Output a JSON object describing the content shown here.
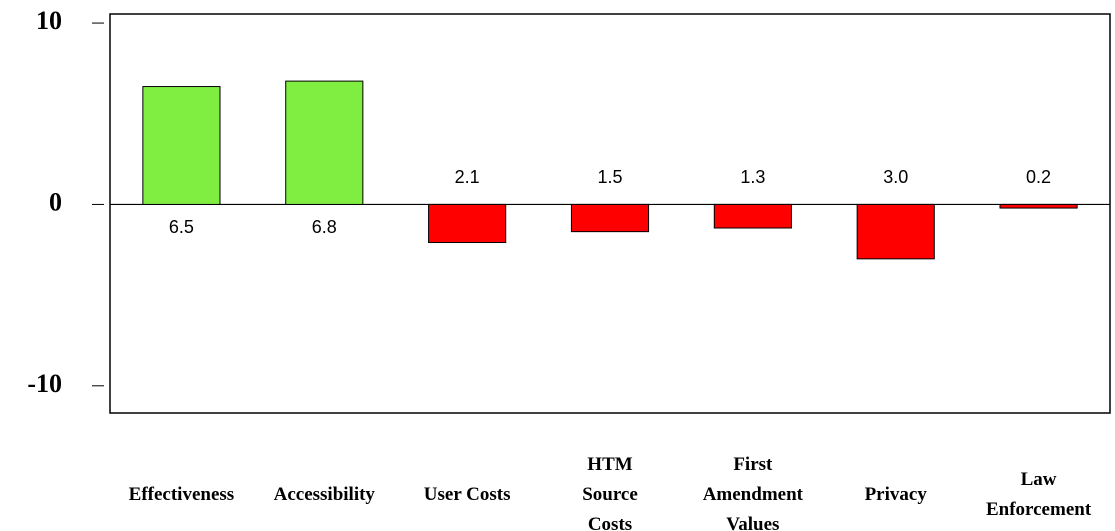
{
  "chart_data": {
    "type": "bar",
    "categories": [
      [
        "Effectiveness"
      ],
      [
        "Accessibility"
      ],
      [
        "User Costs"
      ],
      [
        "HTM",
        "Source",
        "Costs"
      ],
      [
        "First",
        "Amendment",
        "Values"
      ],
      [
        "Privacy"
      ],
      [
        "Law",
        "Enforcement"
      ]
    ],
    "values": [
      6.5,
      6.8,
      -2.1,
      -1.5,
      -1.3,
      -3.0,
      -0.2
    ],
    "value_labels": [
      "6.5",
      "6.8",
      "2.1",
      "1.5",
      "1.3",
      "3.0",
      "0.2"
    ],
    "positive_color": "#80ee40",
    "negative_color": "#ff0000",
    "ylim": [
      -11.5,
      10.5
    ],
    "yticks": [
      -10,
      0,
      10
    ],
    "grid": false
  }
}
